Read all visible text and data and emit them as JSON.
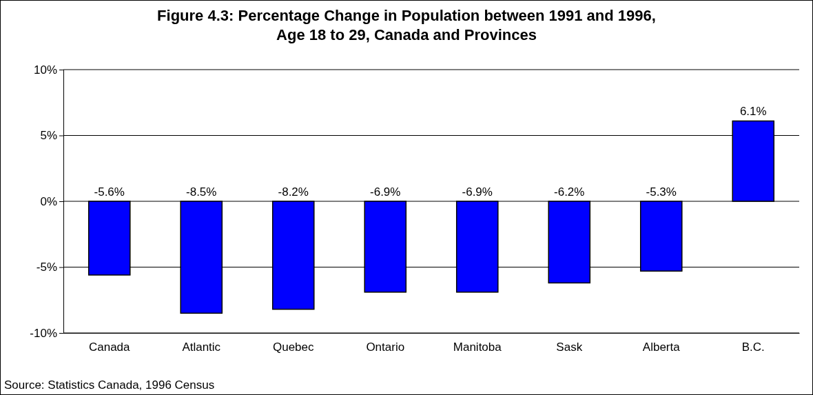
{
  "chart_data": {
    "type": "bar",
    "title": "Figure 4.3:  Percentage Change in Population between 1991 and 1996,\nAge 18 to 29, Canada and Provinces",
    "categories": [
      "Canada",
      "Atlantic",
      "Quebec",
      "Ontario",
      "Manitoba",
      "Sask",
      "Alberta",
      "B.C."
    ],
    "values": [
      -5.6,
      -8.5,
      -8.2,
      -6.9,
      -6.9,
      -6.2,
      -5.3,
      6.1
    ],
    "value_labels": [
      "-5.6%",
      "-8.5%",
      "-8.2%",
      "-6.9%",
      "-6.9%",
      "-6.2%",
      "-5.3%",
      "6.1%"
    ],
    "color": "#0000ff",
    "ylim": [
      -10,
      10
    ],
    "yticks": [
      {
        "value": -10,
        "label": "-10%"
      },
      {
        "value": -5,
        "label": "-5%"
      },
      {
        "value": 0,
        "label": "0%"
      },
      {
        "value": 5,
        "label": "5%"
      },
      {
        "value": 10,
        "label": "10%"
      }
    ],
    "grid": "y",
    "annotations": [
      "Source:  Statistics Canada, 1996 Census"
    ]
  }
}
